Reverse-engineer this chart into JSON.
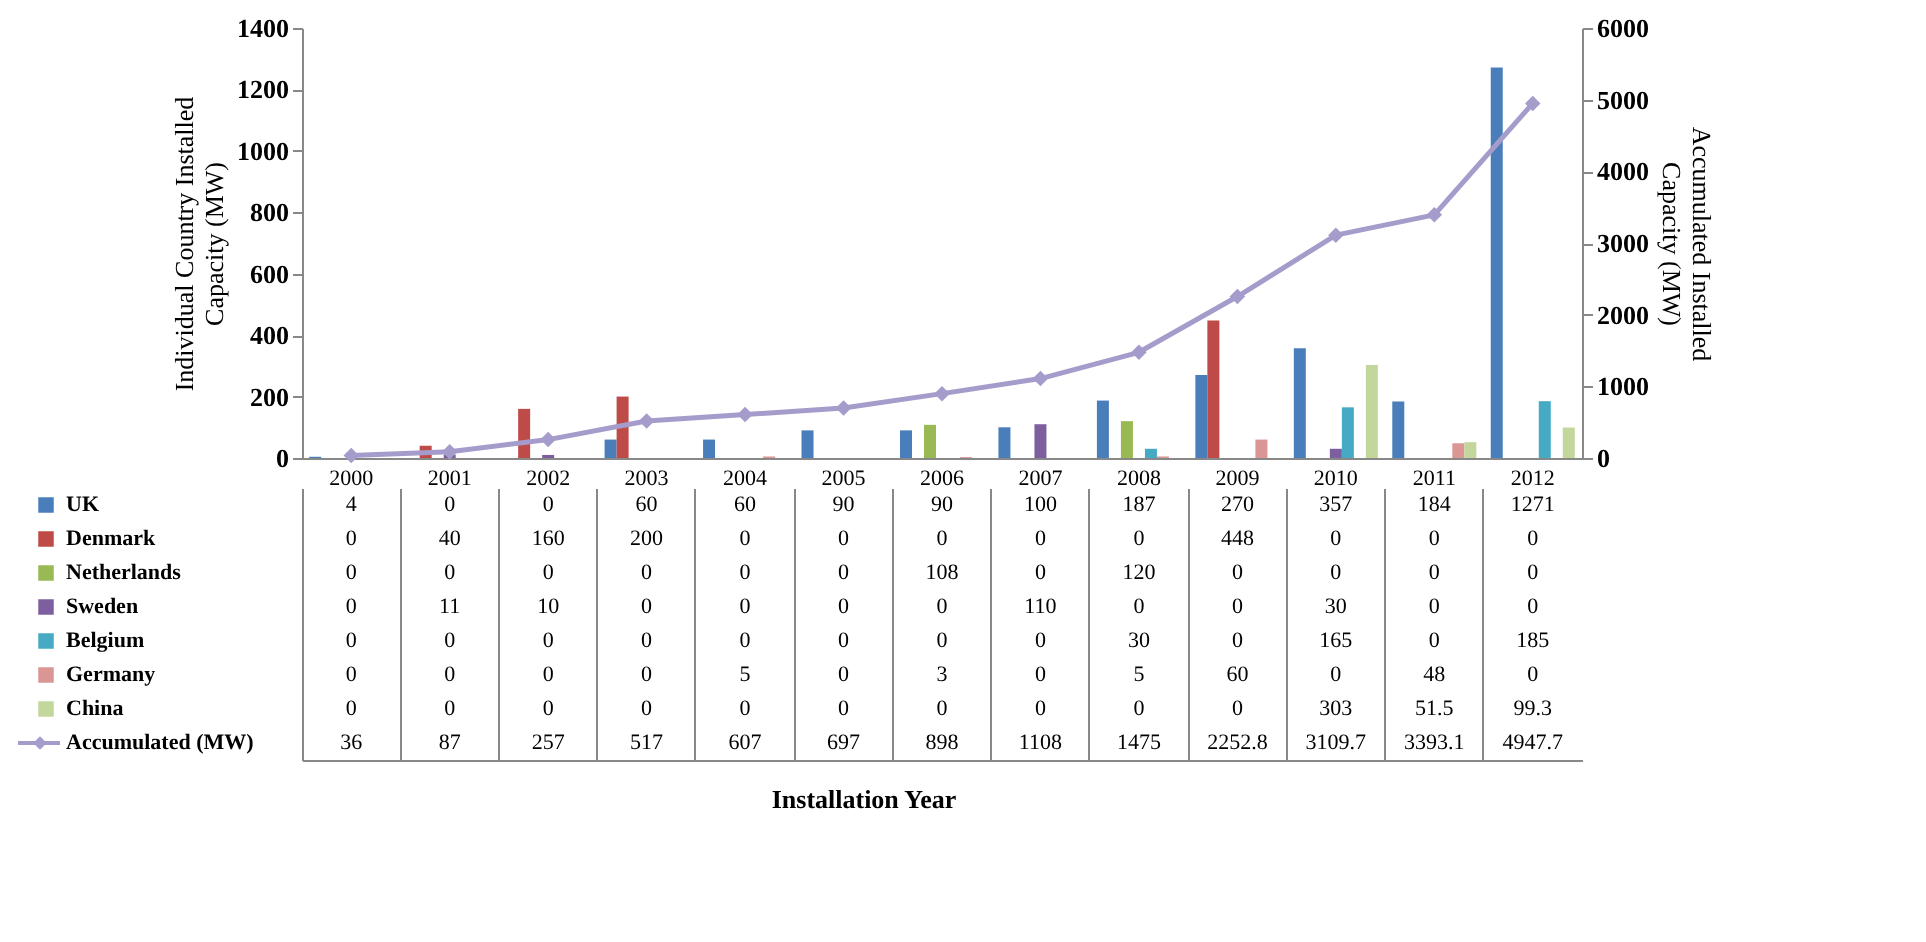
{
  "chart_data": {
    "type": "bar",
    "annotations": [
      "Installation Year"
    ],
    "ylabel": "Individual Country Installed Capacity (MW)",
    "y2label": "Accumulated Installed Capacity (MW)",
    "categories": [
      "2000",
      "2001",
      "2002",
      "2003",
      "2004",
      "2005",
      "2006",
      "2007",
      "2008",
      "2009",
      "2010",
      "2011",
      "2012"
    ],
    "series": [
      {
        "name": "UK",
        "color": "#4a7ebb",
        "values": [
          4,
          0,
          0,
          60,
          60,
          90,
          90,
          100,
          187,
          270,
          357,
          184,
          1271
        ]
      },
      {
        "name": "Denmark",
        "color": "#be4b48",
        "values": [
          0,
          40,
          160,
          200,
          0,
          0,
          0,
          0,
          0,
          448,
          0,
          0,
          0
        ]
      },
      {
        "name": "Netherlands",
        "color": "#98b954",
        "values": [
          0,
          0,
          0,
          0,
          0,
          0,
          108,
          0,
          120,
          0,
          0,
          0,
          0
        ]
      },
      {
        "name": "Sweden",
        "color": "#7d5fa0",
        "values": [
          0,
          11,
          10,
          0,
          0,
          0,
          0,
          110,
          0,
          0,
          30,
          0,
          0
        ]
      },
      {
        "name": "Belgium",
        "color": "#46aac5",
        "values": [
          0,
          0,
          0,
          0,
          0,
          0,
          0,
          0,
          30,
          0,
          165,
          0,
          185
        ]
      },
      {
        "name": "Germany",
        "color": "#d99694",
        "values": [
          0,
          0,
          0,
          0,
          5,
          0,
          3,
          0,
          5,
          60,
          0,
          48,
          0
        ]
      },
      {
        "name": "China",
        "color": "#c3d69b",
        "values": [
          0,
          0,
          0,
          0,
          0,
          0,
          0,
          0,
          0,
          0,
          303,
          51.5,
          99.3
        ]
      },
      {
        "name": "Accumulated (MW)",
        "type": "line",
        "axis": "y2",
        "color": "#a59ccb",
        "values": [
          36,
          87,
          257,
          517,
          607,
          697,
          898,
          1108,
          1475,
          2252.8,
          3109.7,
          3393.1,
          4947.7
        ]
      }
    ],
    "ylim": [
      0,
      1400
    ],
    "yticks": [
      0,
      200,
      400,
      600,
      800,
      1000,
      1200,
      1400
    ],
    "y2lim": [
      0,
      6000
    ],
    "y2ticks": [
      0,
      1000,
      2000,
      3000,
      4000,
      5000,
      6000
    ],
    "data_labels": true,
    "legend": "bottom",
    "marker": "diamond",
    "line_style": "solid"
  }
}
